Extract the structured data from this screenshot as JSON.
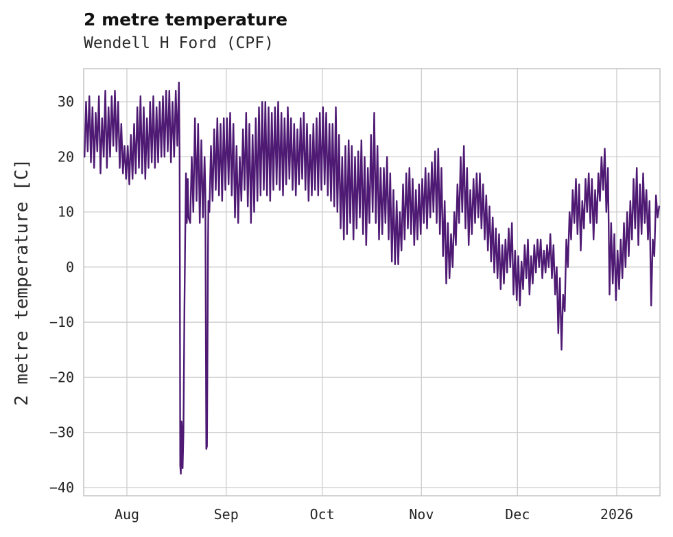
{
  "chart_data": {
    "type": "line",
    "title": "2 metre temperature",
    "subtitle": "Wendell H Ford (CPF)",
    "ylabel": "2 metre temperature [C]",
    "xlabel": "",
    "series_name": "2 metre temperature",
    "line_color": "#4e1a73",
    "grid": true,
    "grid_color": "#cccccc",
    "border_color": "#c4c4c4",
    "background_color": "#ffffff",
    "legend": "none",
    "x_unit": "days",
    "x_domain_days": [
      0,
      180
    ],
    "x_ticks": [
      {
        "label": "Aug",
        "day": 13.5
      },
      {
        "label": "Sep",
        "day": 44.5
      },
      {
        "label": "Oct",
        "day": 74.5
      },
      {
        "label": "Nov",
        "day": 105.5
      },
      {
        "label": "Dec",
        "day": 135.5
      },
      {
        "label": "2026",
        "day": 166.5
      }
    ],
    "y_ticks": [
      {
        "label": "30",
        "v": 30
      },
      {
        "label": "20",
        "v": 20
      },
      {
        "label": "10",
        "v": 10
      },
      {
        "label": "0",
        "v": 0
      },
      {
        "label": "−10",
        "v": -10
      },
      {
        "label": "−20",
        "v": -20
      },
      {
        "label": "−30",
        "v": -30
      },
      {
        "label": "−40",
        "v": -40
      }
    ],
    "ylim": [
      -41.5,
      36
    ],
    "y_range_observed": [
      -37.5,
      33.5
    ],
    "daily_min_max": [
      [
        0,
        20,
        30
      ],
      [
        1,
        21,
        31
      ],
      [
        2,
        19,
        29
      ],
      [
        3,
        18,
        28
      ],
      [
        4,
        21,
        31
      ],
      [
        5,
        17,
        27
      ],
      [
        6,
        20,
        32
      ],
      [
        7,
        18,
        29
      ],
      [
        8,
        20,
        31
      ],
      [
        9,
        22,
        32
      ],
      [
        10,
        21,
        30
      ],
      [
        11,
        18,
        26
      ],
      [
        12,
        17,
        22
      ],
      [
        13,
        16,
        22
      ],
      [
        14,
        15,
        24
      ],
      [
        15,
        16,
        26
      ],
      [
        16,
        17,
        29
      ],
      [
        17,
        18,
        31
      ],
      [
        18,
        17,
        29
      ],
      [
        19,
        16,
        27
      ],
      [
        20,
        18,
        30
      ],
      [
        21,
        19,
        31
      ],
      [
        22,
        18,
        29
      ],
      [
        23,
        19,
        30
      ],
      [
        24,
        20,
        31
      ],
      [
        25,
        20,
        32
      ],
      [
        26,
        21,
        32
      ],
      [
        27,
        19,
        30
      ],
      [
        28,
        20,
        32
      ],
      [
        29,
        22,
        33.5
      ],
      [
        33,
        8,
        20
      ],
      [
        34,
        10,
        27
      ],
      [
        35,
        12,
        26
      ],
      [
        36,
        8,
        23
      ],
      [
        37,
        9,
        20
      ],
      [
        39,
        10,
        22
      ],
      [
        40,
        12,
        25
      ],
      [
        41,
        14,
        27
      ],
      [
        42,
        13,
        26
      ],
      [
        43,
        12,
        27
      ],
      [
        44,
        14,
        27
      ],
      [
        45,
        15,
        28
      ],
      [
        46,
        13,
        26
      ],
      [
        47,
        9,
        22
      ],
      [
        48,
        8,
        20
      ],
      [
        49,
        12,
        25
      ],
      [
        50,
        14,
        28
      ],
      [
        51,
        11,
        26
      ],
      [
        52,
        8,
        24
      ],
      [
        53,
        10,
        27
      ],
      [
        54,
        12,
        29
      ],
      [
        55,
        13,
        30
      ],
      [
        56,
        14,
        30
      ],
      [
        57,
        13,
        29
      ],
      [
        58,
        12,
        28
      ],
      [
        59,
        14,
        29
      ],
      [
        60,
        15,
        30
      ],
      [
        61,
        14,
        28
      ],
      [
        62,
        13,
        27
      ],
      [
        63,
        15,
        29
      ],
      [
        64,
        16,
        27
      ],
      [
        65,
        14,
        26
      ],
      [
        66,
        13,
        25
      ],
      [
        67,
        15,
        27
      ],
      [
        68,
        16,
        28
      ],
      [
        69,
        14,
        26
      ],
      [
        70,
        12,
        24
      ],
      [
        71,
        13,
        26
      ],
      [
        72,
        14,
        27
      ],
      [
        73,
        13,
        28
      ],
      [
        74,
        14,
        29
      ],
      [
        75,
        15,
        28
      ],
      [
        76,
        13,
        26
      ],
      [
        77,
        12,
        26
      ],
      [
        78,
        11,
        29
      ],
      [
        79,
        10,
        24
      ],
      [
        80,
        7,
        20
      ],
      [
        81,
        5,
        22
      ],
      [
        82,
        6,
        23
      ],
      [
        83,
        8,
        22
      ],
      [
        84,
        5,
        20
      ],
      [
        85,
        7,
        21
      ],
      [
        86,
        9,
        23
      ],
      [
        87,
        6,
        20
      ],
      [
        88,
        4,
        18
      ],
      [
        89,
        8,
        24
      ],
      [
        90,
        10,
        28
      ],
      [
        91,
        8,
        22
      ],
      [
        92,
        5,
        18
      ],
      [
        93,
        6,
        18
      ],
      [
        94,
        8,
        20
      ],
      [
        95,
        5,
        17
      ],
      [
        96,
        1,
        14
      ],
      [
        97,
        0.5,
        12
      ],
      [
        98,
        0.5,
        10
      ],
      [
        99,
        3,
        15
      ],
      [
        100,
        5,
        17
      ],
      [
        101,
        7,
        18
      ],
      [
        102,
        6,
        16
      ],
      [
        103,
        4,
        14
      ],
      [
        104,
        5,
        15
      ],
      [
        105,
        6,
        16
      ],
      [
        106,
        8,
        18
      ],
      [
        107,
        7,
        17
      ],
      [
        108,
        9,
        19
      ],
      [
        109,
        10,
        21
      ],
      [
        110,
        8,
        21.5
      ],
      [
        111,
        6,
        18
      ],
      [
        112,
        2,
        12
      ],
      [
        113,
        -3,
        8
      ],
      [
        114,
        -2,
        6
      ],
      [
        115,
        0,
        10
      ],
      [
        116,
        4,
        15
      ],
      [
        117,
        8,
        20
      ],
      [
        118,
        10,
        22
      ],
      [
        119,
        7,
        18
      ],
      [
        120,
        4,
        14
      ],
      [
        121,
        6,
        16
      ],
      [
        122,
        8,
        17
      ],
      [
        123,
        9,
        17
      ],
      [
        124,
        7,
        15
      ],
      [
        125,
        5,
        13
      ],
      [
        126,
        3,
        11
      ],
      [
        127,
        1,
        9
      ],
      [
        128,
        -1,
        7
      ],
      [
        129,
        -2,
        6
      ],
      [
        130,
        -4,
        4
      ],
      [
        131,
        -3,
        5
      ],
      [
        132,
        -1,
        7
      ],
      [
        133,
        0,
        8
      ],
      [
        134,
        -5,
        3
      ],
      [
        135,
        -6,
        2
      ],
      [
        136,
        -7,
        1
      ],
      [
        137,
        -4,
        4
      ],
      [
        138,
        -2,
        5
      ],
      [
        139,
        -5,
        2
      ],
      [
        140,
        -3,
        4
      ],
      [
        141,
        -1,
        5
      ],
      [
        142,
        0,
        5
      ],
      [
        143,
        -2,
        3
      ],
      [
        144,
        -1,
        4
      ],
      [
        145,
        0,
        6
      ],
      [
        146,
        -2,
        4
      ],
      [
        147,
        -5,
        0
      ],
      [
        148,
        -12,
        -2
      ],
      [
        149,
        -15,
        -5
      ],
      [
        150,
        -8,
        5
      ],
      [
        151,
        0,
        10
      ],
      [
        152,
        5,
        14
      ],
      [
        153,
        8,
        16
      ],
      [
        154,
        6,
        15
      ],
      [
        155,
        3,
        12
      ],
      [
        156,
        7,
        16
      ],
      [
        157,
        10,
        17
      ],
      [
        158,
        8,
        16
      ],
      [
        159,
        5,
        14
      ],
      [
        160,
        8,
        17
      ],
      [
        161,
        12,
        20
      ],
      [
        162,
        14,
        21.5
      ],
      [
        163,
        10,
        18
      ],
      [
        164,
        -5,
        8
      ],
      [
        165,
        -3,
        6
      ],
      [
        166,
        -6,
        3
      ],
      [
        167,
        -4,
        5
      ],
      [
        168,
        -2,
        8
      ],
      [
        169,
        0,
        10
      ],
      [
        170,
        2,
        12
      ],
      [
        171,
        5,
        16
      ],
      [
        172,
        7,
        18
      ],
      [
        173,
        4,
        15
      ],
      [
        174,
        6,
        17
      ],
      [
        175,
        8,
        14
      ],
      [
        176,
        5,
        12
      ],
      [
        177,
        -7,
        5
      ],
      [
        178,
        2,
        13
      ],
      [
        179,
        9,
        11
      ]
    ],
    "event_points": [
      [
        29.95,
        20
      ],
      [
        30.05,
        0
      ],
      [
        30.15,
        -36
      ],
      [
        30.35,
        -37.5
      ],
      [
        30.55,
        -28
      ],
      [
        30.7,
        -29.5
      ],
      [
        30.9,
        -36.5
      ],
      [
        31.15,
        -30
      ],
      [
        31.45,
        -8
      ],
      [
        31.7,
        5
      ],
      [
        31.95,
        17
      ],
      [
        32.2,
        8
      ],
      [
        32.5,
        16
      ],
      [
        32.75,
        9
      ],
      [
        38.0,
        14
      ],
      [
        38.15,
        -10
      ],
      [
        38.3,
        -33
      ],
      [
        38.5,
        -32.5
      ],
      [
        38.7,
        -12
      ],
      [
        38.85,
        5
      ],
      [
        38.95,
        12
      ]
    ]
  }
}
